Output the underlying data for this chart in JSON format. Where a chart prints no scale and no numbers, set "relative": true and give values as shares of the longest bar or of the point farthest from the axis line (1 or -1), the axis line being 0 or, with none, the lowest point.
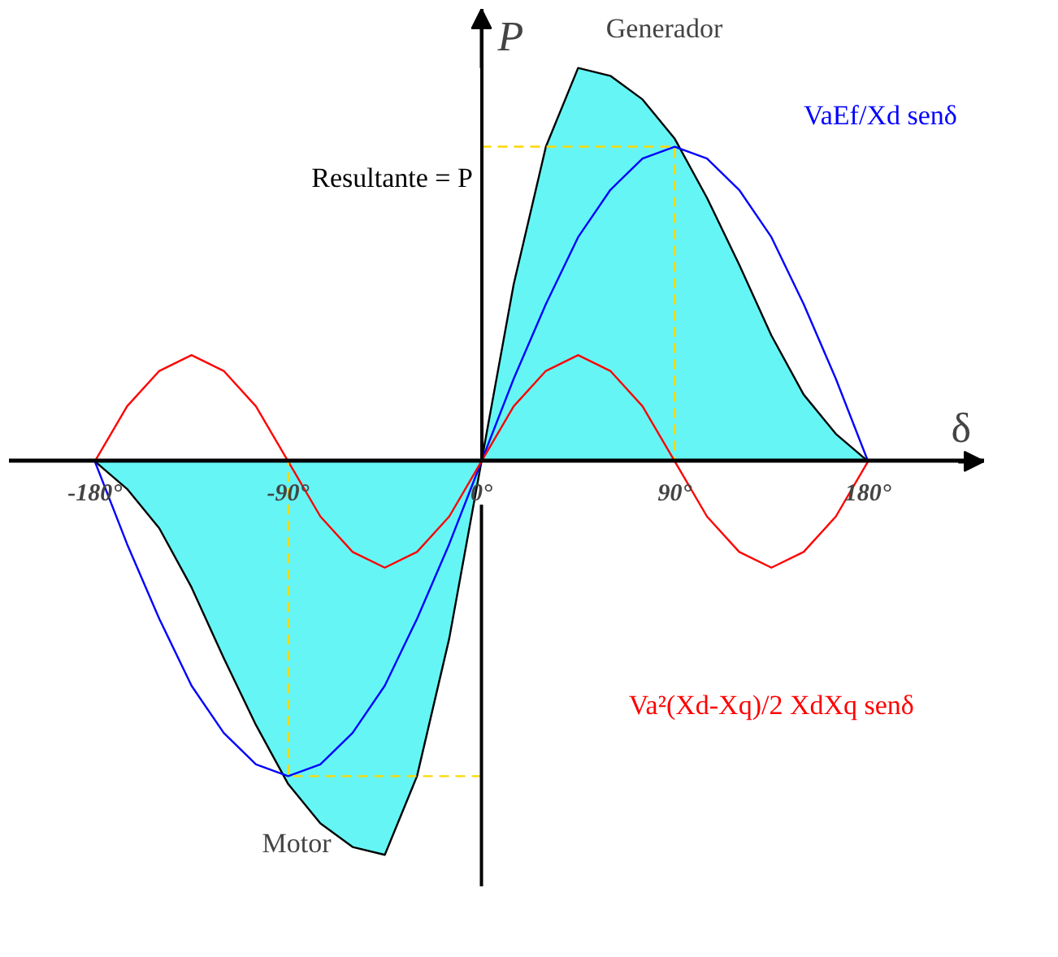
{
  "chart_data": {
    "type": "line",
    "relative": true,
    "xlabel": "δ",
    "ylabel": "P",
    "xlim": [
      -220,
      234
    ],
    "xticks": [
      {
        "value": -180,
        "label": "-180°"
      },
      {
        "value": -90,
        "label": "-90°"
      },
      {
        "value": 0,
        "label": "0°"
      },
      {
        "value": 90,
        "label": "90°"
      },
      {
        "value": 180,
        "label": "180°"
      }
    ],
    "x": [
      -180,
      -165,
      -150,
      -135,
      -120,
      -105,
      -90,
      -75,
      -60,
      -45,
      -30,
      -15,
      0,
      15,
      30,
      45,
      60,
      75,
      90,
      105,
      120,
      135,
      150,
      165,
      180
    ],
    "series": [
      {
        "name": "Resultante = P",
        "type": "area",
        "color": "#66f5f5",
        "values": [
          0,
          -0.07,
          -0.17,
          -0.32,
          -0.5,
          -0.67,
          -0.82,
          -0.92,
          -0.98,
          -1.0,
          -0.8,
          -0.45,
          0,
          0.45,
          0.8,
          1.0,
          0.98,
          0.92,
          0.82,
          0.67,
          0.5,
          0.32,
          0.17,
          0.07,
          0
        ]
      },
      {
        "name": "VaEf/Xd senδ",
        "color": "#0000ff",
        "values": [
          0,
          -0.21,
          -0.4,
          -0.57,
          -0.69,
          -0.77,
          -0.8,
          -0.77,
          -0.69,
          -0.57,
          -0.4,
          -0.21,
          0,
          0.21,
          0.4,
          0.57,
          0.69,
          0.77,
          0.8,
          0.77,
          0.69,
          0.57,
          0.4,
          0.21,
          0
        ]
      },
      {
        "name": "Va²(Xd-Xq)/2 XdXq senδ",
        "color": "#ff0000",
        "values": [
          0,
          0.14,
          0.23,
          0.27,
          0.23,
          0.14,
          0,
          -0.14,
          -0.23,
          -0.27,
          -0.23,
          -0.14,
          0,
          0.14,
          0.23,
          0.27,
          0.23,
          0.14,
          0,
          -0.14,
          -0.23,
          -0.27,
          -0.23,
          -0.14,
          0
        ]
      }
    ],
    "ref_lines": [
      {
        "axis": "x",
        "value": 90,
        "color": "#ffd700",
        "line_style": "dashed"
      },
      {
        "axis": "x",
        "value": -90,
        "color": "#ffd700",
        "line_style": "dashed"
      }
    ],
    "annotations": [
      "Generador",
      "Motor"
    ]
  }
}
